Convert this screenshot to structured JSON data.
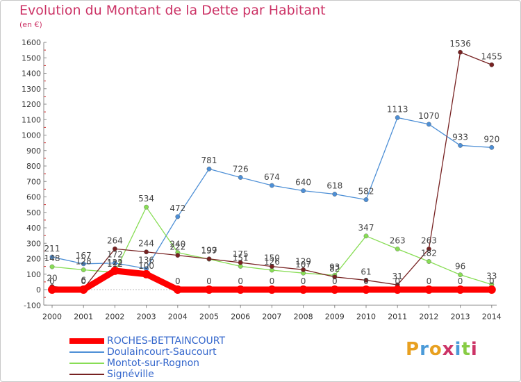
{
  "title": "Evolution du Montant de la Dette par Habitant",
  "subtitle": "(en €)",
  "logo": "Proxiti",
  "chart_data": {
    "type": "line",
    "title": "Evolution du Montant de la Dette par Habitant",
    "ylabel": "(en €)",
    "xlabel": "",
    "x": [
      "2000",
      "2001",
      "2002",
      "2003",
      "2004",
      "2005",
      "2006",
      "2007",
      "2008",
      "2009",
      "2010",
      "2011",
      "2012",
      "2013",
      "2014"
    ],
    "ylim": [
      -100,
      1600
    ],
    "yticks": [
      -100,
      0,
      100,
      200,
      300,
      400,
      500,
      600,
      700,
      800,
      900,
      1000,
      1100,
      1200,
      1300,
      1400,
      1500,
      1600
    ],
    "grid": false,
    "legend": "bottom-left",
    "series": [
      {
        "name": "ROCHES-BETTAINCOURT",
        "color": "#ff0000",
        "values": [
          0,
          0,
          122,
          100,
          0,
          0,
          0,
          0,
          0,
          0,
          0,
          0,
          0,
          0,
          0
        ]
      },
      {
        "name": "Doulaincourt-Saucourt",
        "color": "#4d8fd6",
        "values": [
          211,
          167,
          172,
          136,
          472,
          781,
          726,
          674,
          640,
          618,
          582,
          1113,
          1070,
          933,
          920
        ]
      },
      {
        "name": "Montot-sur-Rognon",
        "color": "#88dd55",
        "values": [
          148,
          128,
          112,
          534,
          240,
          197,
          151,
          126,
          107,
          93,
          347,
          263,
          182,
          96,
          33
        ]
      },
      {
        "name": "Signéville",
        "color": "#772222",
        "values": [
          20,
          6,
          264,
          244,
          222,
          199,
          175,
          150,
          129,
          82,
          61,
          31,
          263,
          1536,
          1455
        ]
      }
    ]
  }
}
